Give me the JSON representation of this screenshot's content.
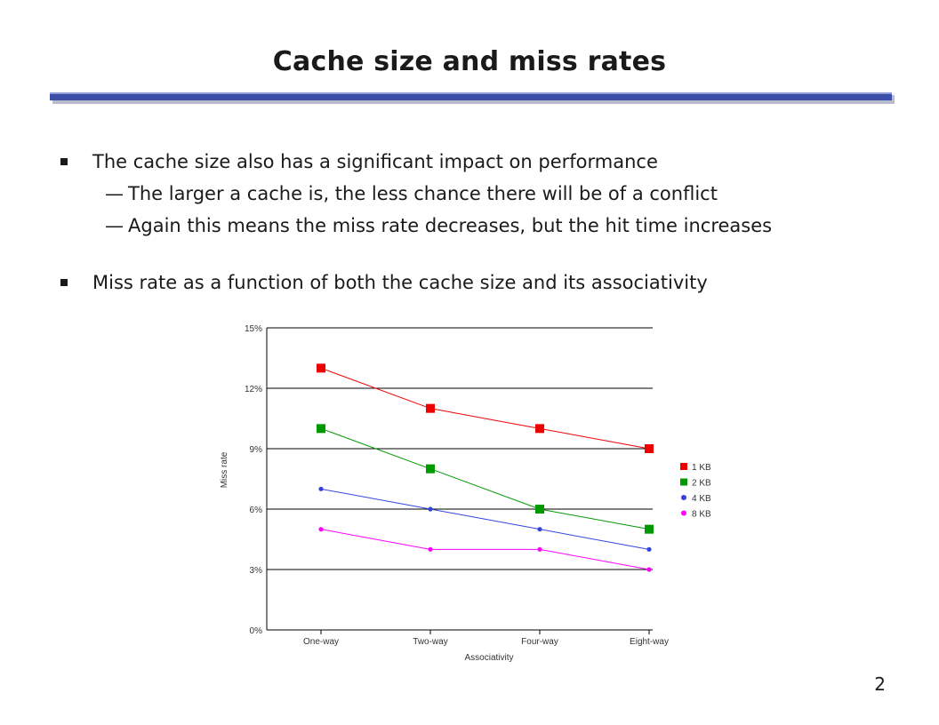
{
  "slide": {
    "title": "Cache size and miss rates",
    "page_number": "2",
    "bullets": [
      {
        "text": "The cache size also has a significant impact on performance",
        "subs": [
          "The larger a cache is, the less chance there will be of a conflict",
          "Again this means the miss rate decreases, but the hit time increases"
        ]
      },
      {
        "text": "Miss rate as a function of both the cache size and its associativity",
        "subs": []
      }
    ],
    "dash_glyph": "—"
  },
  "colors": {
    "bar_blue": "#3b4ea8",
    "red": "#ee0000",
    "green": "#009900",
    "blue": "#3344dd",
    "magenta": "#ff00ff"
  },
  "chart_data": {
    "type": "line",
    "categories": [
      "One-way",
      "Two-way",
      "Four-way",
      "Eight-way"
    ],
    "series": [
      {
        "name": "1 KB",
        "values": [
          13,
          11,
          10,
          9
        ],
        "color": "#ee0000",
        "marker": "square"
      },
      {
        "name": "2 KB",
        "values": [
          10,
          8,
          6,
          5
        ],
        "color": "#009900",
        "marker": "square"
      },
      {
        "name": "4 KB",
        "values": [
          7,
          6,
          5,
          4
        ],
        "color": "#3344dd",
        "marker": "circle"
      },
      {
        "name": "8 KB",
        "values": [
          5,
          4,
          4,
          3
        ],
        "color": "#ff00ff",
        "marker": "circle"
      }
    ],
    "xlabel": "Associativity",
    "ylabel": "Miss rate",
    "ylim": [
      0,
      15
    ],
    "yticks": [
      0,
      3,
      6,
      9,
      12,
      15
    ],
    "ytick_labels": [
      "0%",
      "3%",
      "6%",
      "9%",
      "12%",
      "15%"
    ],
    "grid": "horizontal",
    "legend": "right"
  }
}
